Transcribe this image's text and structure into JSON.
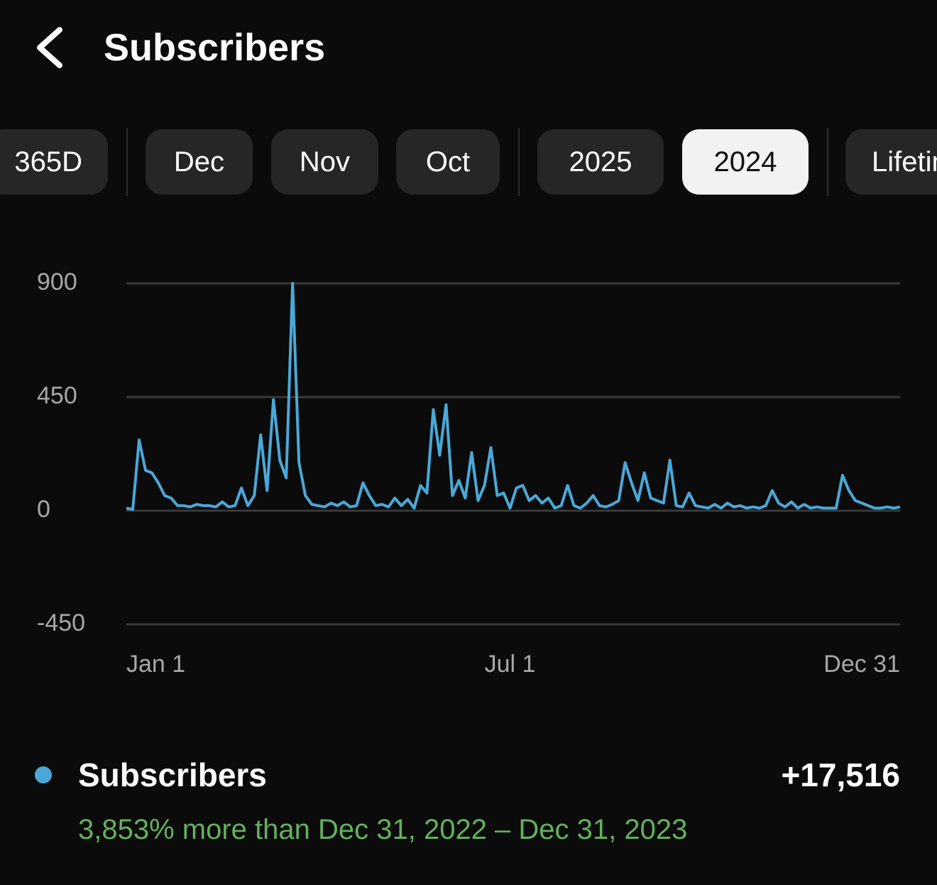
{
  "header": {
    "title": "Subscribers"
  },
  "tabs": {
    "items": [
      "365D",
      "Dec",
      "Nov",
      "Oct",
      "2025",
      "2024",
      "Lifetime"
    ],
    "selected_index": 5
  },
  "chart_data": {
    "type": "line",
    "categories": [
      "Jan 1",
      null,
      null,
      null,
      null,
      null,
      null,
      null,
      null,
      null,
      null,
      null,
      null,
      null,
      null,
      null,
      null,
      null,
      null,
      null,
      null,
      null,
      null,
      null,
      null,
      null,
      null,
      null,
      null,
      null,
      null,
      null,
      null,
      null,
      null,
      null,
      null,
      null,
      null,
      null,
      null,
      null,
      null,
      null,
      null,
      null,
      null,
      null,
      null,
      null,
      null,
      null,
      null,
      null,
      null,
      null,
      null,
      null,
      null,
      null,
      "Jul 1",
      null,
      null,
      null,
      null,
      null,
      null,
      null,
      null,
      null,
      null,
      null,
      null,
      null,
      null,
      null,
      null,
      null,
      null,
      null,
      null,
      null,
      null,
      null,
      null,
      null,
      null,
      null,
      null,
      null,
      null,
      null,
      null,
      null,
      null,
      null,
      null,
      null,
      null,
      null,
      null,
      null,
      null,
      null,
      null,
      null,
      null,
      null,
      null,
      null,
      null,
      null,
      null,
      null,
      null,
      null,
      null,
      null,
      null,
      null,
      null,
      "Dec 31"
    ],
    "series": [
      {
        "name": "Subscribers",
        "color": "#4aa8d8",
        "values": [
          10,
          5,
          280,
          160,
          150,
          110,
          60,
          50,
          20,
          20,
          15,
          25,
          20,
          20,
          15,
          35,
          15,
          20,
          90,
          20,
          60,
          300,
          80,
          440,
          200,
          130,
          900,
          190,
          60,
          25,
          20,
          15,
          30,
          20,
          35,
          15,
          20,
          110,
          60,
          20,
          25,
          15,
          50,
          20,
          45,
          10,
          100,
          70,
          400,
          220,
          420,
          60,
          120,
          50,
          230,
          40,
          100,
          250,
          60,
          70,
          10,
          90,
          100,
          40,
          60,
          30,
          50,
          10,
          20,
          100,
          20,
          10,
          30,
          60,
          20,
          15,
          25,
          40,
          190,
          110,
          40,
          150,
          50,
          40,
          30,
          200,
          20,
          15,
          70,
          20,
          15,
          10,
          25,
          10,
          30,
          15,
          20,
          10,
          15,
          10,
          20,
          80,
          30,
          15,
          35,
          10,
          25,
          10,
          15,
          10,
          10,
          10,
          140,
          80,
          40,
          30,
          20,
          10,
          10,
          15,
          10,
          15
        ]
      }
    ],
    "ylim": [
      -450,
      900
    ],
    "yticks": [
      900,
      450,
      0,
      -450
    ],
    "grid": true
  },
  "summary": {
    "total": "+17,516",
    "comparison": "3,853% more than Dec 31, 2022 – Dec 31, 2023"
  }
}
